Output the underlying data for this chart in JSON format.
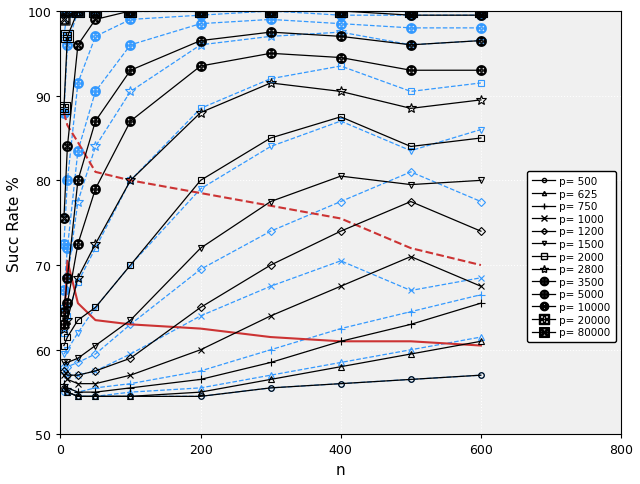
{
  "n_values": [
    5,
    10,
    25,
    50,
    100,
    200,
    300,
    400,
    500,
    600
  ],
  "p_values": [
    500,
    625,
    750,
    1000,
    1200,
    1500,
    2000,
    2800,
    3500,
    5000,
    10000,
    20000,
    80000
  ],
  "black_data": {
    "500": [
      55.5,
      55.0,
      54.5,
      54.5,
      54.5,
      54.5,
      55.5,
      56.0,
      56.5,
      57.0
    ],
    "625": [
      55.5,
      55.0,
      54.5,
      54.5,
      54.5,
      55.0,
      56.5,
      58.0,
      59.5,
      61.0
    ],
    "750": [
      56.0,
      55.5,
      55.0,
      55.0,
      55.5,
      56.5,
      58.5,
      61.0,
      63.0,
      65.5
    ],
    "1000": [
      57.0,
      56.5,
      56.0,
      56.0,
      57.0,
      60.0,
      64.0,
      67.5,
      71.0,
      67.5
    ],
    "1200": [
      57.5,
      57.0,
      57.0,
      57.5,
      59.0,
      65.0,
      70.0,
      74.0,
      77.5,
      74.0
    ],
    "1500": [
      58.5,
      58.5,
      59.0,
      60.5,
      63.5,
      72.0,
      77.5,
      80.5,
      79.5,
      80.0
    ],
    "2000": [
      60.5,
      61.5,
      63.5,
      65.0,
      70.0,
      80.0,
      85.0,
      87.5,
      84.0,
      85.0
    ],
    "2800": [
      62.5,
      63.5,
      68.5,
      72.5,
      80.0,
      88.0,
      91.5,
      90.5,
      88.5,
      89.5
    ],
    "3500": [
      63.0,
      65.5,
      72.5,
      79.0,
      87.0,
      93.5,
      95.0,
      94.5,
      93.0,
      93.0
    ],
    "5000": [
      64.5,
      68.5,
      80.0,
      87.0,
      93.0,
      96.5,
      97.5,
      97.0,
      96.0,
      96.5
    ],
    "10000": [
      75.5,
      84.0,
      96.0,
      99.0,
      100.0,
      100.0,
      100.0,
      100.0,
      99.5,
      99.5
    ],
    "20000": [
      88.5,
      97.0,
      100.0,
      100.0,
      100.0,
      100.0,
      100.0,
      100.0,
      100.0,
      100.0
    ],
    "80000": [
      99.0,
      100.0,
      100.0,
      100.0,
      100.0,
      100.0,
      100.0,
      100.0,
      100.0,
      100.0
    ]
  },
  "blue_data": {
    "500": [
      55.0,
      55.0,
      54.5,
      54.5,
      54.5,
      54.5,
      55.5,
      56.0,
      56.5,
      57.0
    ],
    "625": [
      55.5,
      55.0,
      54.5,
      54.5,
      55.0,
      55.5,
      57.0,
      58.5,
      60.0,
      61.5
    ],
    "750": [
      56.0,
      55.5,
      55.0,
      55.5,
      56.0,
      57.5,
      60.0,
      62.5,
      64.5,
      66.5
    ],
    "1000": [
      57.5,
      57.0,
      57.0,
      57.5,
      59.5,
      64.0,
      67.5,
      70.5,
      67.0,
      68.5
    ],
    "1200": [
      58.0,
      58.0,
      58.5,
      59.5,
      63.0,
      69.5,
      74.0,
      77.5,
      81.0,
      77.5
    ],
    "1500": [
      59.5,
      60.0,
      62.0,
      65.0,
      70.0,
      79.0,
      84.0,
      87.0,
      83.5,
      86.0
    ],
    "2000": [
      62.0,
      64.0,
      68.0,
      72.0,
      80.0,
      88.5,
      92.0,
      93.5,
      90.5,
      91.5
    ],
    "2800": [
      65.0,
      68.5,
      77.5,
      84.0,
      90.5,
      96.0,
      97.0,
      97.5,
      96.0,
      96.5
    ],
    "3500": [
      67.0,
      72.0,
      83.5,
      90.5,
      96.0,
      98.5,
      99.0,
      98.5,
      98.0,
      98.0
    ],
    "5000": [
      72.5,
      80.0,
      91.5,
      97.0,
      99.0,
      99.5,
      100.0,
      99.5,
      99.5,
      99.5
    ],
    "10000": [
      88.0,
      96.0,
      100.0,
      100.0,
      100.0,
      100.0,
      100.0,
      100.0,
      100.0,
      100.0
    ],
    "20000": [
      97.0,
      100.0,
      100.0,
      100.0,
      100.0,
      100.0,
      100.0,
      100.0,
      100.0,
      100.0
    ],
    "80000": [
      100.0,
      100.0,
      100.0,
      100.0,
      100.0,
      100.0,
      100.0,
      100.0,
      100.0,
      100.0
    ]
  },
  "red_solid": [
    62.5,
    70.5,
    65.5,
    63.5,
    63.0,
    62.5,
    61.5,
    61.0,
    61.0,
    60.5
  ],
  "red_dashed": [
    88.0,
    86.5,
    84.5,
    81.0,
    80.0,
    78.5,
    77.0,
    75.5,
    72.0,
    70.0
  ],
  "xlim": [
    0,
    800
  ],
  "ylim": [
    50,
    100
  ],
  "xticks": [
    0,
    200,
    400,
    600,
    800
  ],
  "yticks": [
    50,
    60,
    70,
    80,
    90,
    100
  ],
  "xlabel": "n",
  "ylabel": "Succ Rate %",
  "bg_color": "#f0f0f0",
  "grid_color": "#ffffff",
  "black_color": "#000000",
  "blue_color": "#3399ff",
  "red_color": "#cc3333"
}
